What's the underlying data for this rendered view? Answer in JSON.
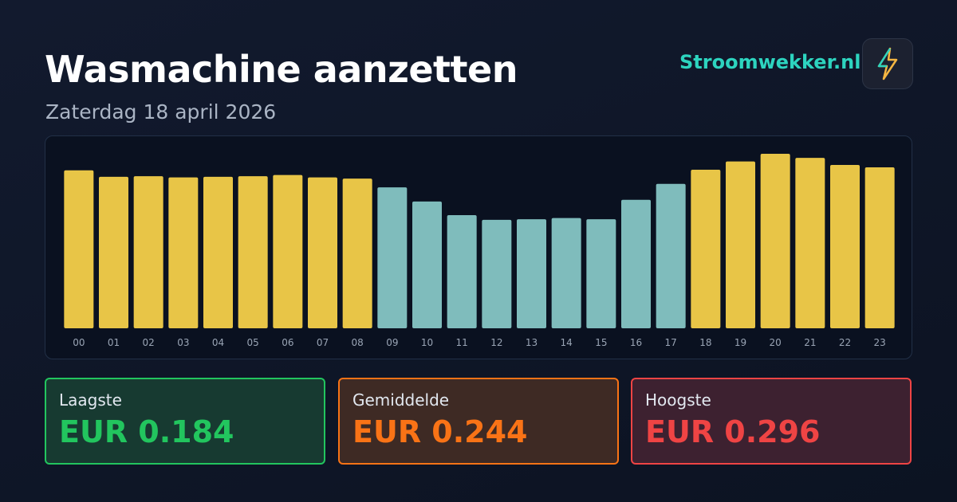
{
  "header": {
    "title": "Wasmachine aanzetten",
    "subtitle": "Zaterdag 18 april 2026",
    "brand": "Stroomwekker.nl"
  },
  "chart_data": {
    "type": "bar",
    "categories": [
      "00",
      "01",
      "02",
      "03",
      "04",
      "05",
      "06",
      "07",
      "08",
      "09",
      "10",
      "11",
      "12",
      "13",
      "14",
      "15",
      "16",
      "17",
      "18",
      "19",
      "20",
      "21",
      "22",
      "23"
    ],
    "values": [
      0.268,
      0.257,
      0.258,
      0.256,
      0.257,
      0.258,
      0.26,
      0.256,
      0.254,
      0.239,
      0.215,
      0.192,
      0.184,
      0.185,
      0.187,
      0.185,
      0.218,
      0.245,
      0.269,
      0.283,
      0.296,
      0.289,
      0.277,
      0.273
    ],
    "colors": [
      "#e8c547",
      "#e8c547",
      "#e8c547",
      "#e8c547",
      "#e8c547",
      "#e8c547",
      "#e8c547",
      "#e8c547",
      "#e8c547",
      "#7fbcbc",
      "#7fbcbc",
      "#7fbcbc",
      "#7fbcbc",
      "#7fbcbc",
      "#7fbcbc",
      "#7fbcbc",
      "#7fbcbc",
      "#7fbcbc",
      "#e8c547",
      "#e8c547",
      "#e8c547",
      "#e8c547",
      "#e8c547",
      "#e8c547"
    ]
  },
  "stats": [
    {
      "label": "Laagste",
      "value": "EUR 0.184"
    },
    {
      "label": "Gemiddelde",
      "value": "EUR 0.244"
    },
    {
      "label": "Hoogste",
      "value": "EUR 0.296"
    }
  ]
}
